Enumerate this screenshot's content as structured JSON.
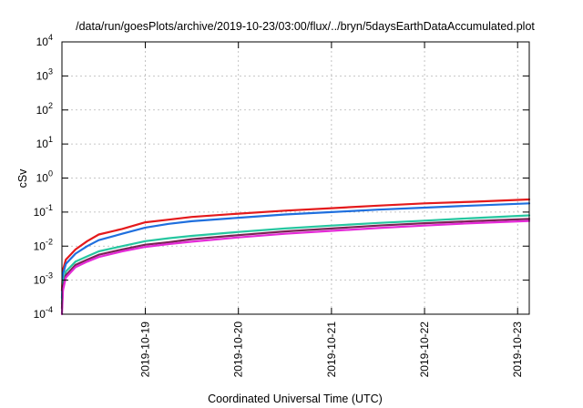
{
  "chart_data": {
    "type": "line",
    "title": "/data/run/goesPlots/archive/2019-10-23/03:00/flux/../bryn/5daysEarthDataAccumulated.plot",
    "xlabel": "Coordinated Universal Time (UTC)",
    "ylabel": "cSv",
    "yscale": "log",
    "xlim": [
      "2019-10-18T02:30",
      "2019-10-23T03:00"
    ],
    "ylim": [
      0.0001,
      10000
    ],
    "grid": true,
    "x_ticks": [
      "2019-10-19",
      "2019-10-20",
      "2019-10-21",
      "2019-10-22",
      "2019-10-23"
    ],
    "y_ticks": [
      {
        "base": "10",
        "exp": "-4",
        "value": 0.0001
      },
      {
        "base": "10",
        "exp": "-3",
        "value": 0.001
      },
      {
        "base": "10",
        "exp": "-2",
        "value": 0.01
      },
      {
        "base": "10",
        "exp": "-1",
        "value": 0.1
      },
      {
        "base": "10",
        "exp": "0",
        "value": 1
      },
      {
        "base": "10",
        "exp": "1",
        "value": 10
      },
      {
        "base": "10",
        "exp": "2",
        "value": 100
      },
      {
        "base": "10",
        "exp": "3",
        "value": 1000
      },
      {
        "base": "10",
        "exp": "4",
        "value": 10000
      }
    ],
    "series": [
      {
        "color": "#e41a1c",
        "points": [
          [
            "2019-10-18T02:30",
            0.0005
          ],
          [
            "2019-10-18T02:45",
            0.002
          ],
          [
            "2019-10-18T03:30",
            0.004
          ],
          [
            "2019-10-18T06:00",
            0.008
          ],
          [
            "2019-10-18T09:00",
            0.014
          ],
          [
            "2019-10-18T12:00",
            0.022
          ],
          [
            "2019-10-18T18:00",
            0.032
          ],
          [
            "2019-10-19T00:00",
            0.05
          ],
          [
            "2019-10-19T06:00",
            0.06
          ],
          [
            "2019-10-19T12:00",
            0.072
          ],
          [
            "2019-10-20T00:00",
            0.09
          ],
          [
            "2019-10-20T12:00",
            0.11
          ],
          [
            "2019-10-21T00:00",
            0.13
          ],
          [
            "2019-10-21T12:00",
            0.155
          ],
          [
            "2019-10-22T00:00",
            0.18
          ],
          [
            "2019-10-22T12:00",
            0.2
          ],
          [
            "2019-10-23T03:00",
            0.235
          ]
        ]
      },
      {
        "color": "#1f6fde",
        "points": [
          [
            "2019-10-18T02:30",
            0.0003
          ],
          [
            "2019-10-18T02:45",
            0.0015
          ],
          [
            "2019-10-18T03:30",
            0.003
          ],
          [
            "2019-10-18T06:00",
            0.006
          ],
          [
            "2019-10-18T09:00",
            0.01
          ],
          [
            "2019-10-18T12:00",
            0.015
          ],
          [
            "2019-10-18T18:00",
            0.023
          ],
          [
            "2019-10-19T00:00",
            0.035
          ],
          [
            "2019-10-19T06:00",
            0.045
          ],
          [
            "2019-10-19T12:00",
            0.054
          ],
          [
            "2019-10-20T00:00",
            0.068
          ],
          [
            "2019-10-20T12:00",
            0.085
          ],
          [
            "2019-10-21T00:00",
            0.1
          ],
          [
            "2019-10-21T12:00",
            0.118
          ],
          [
            "2019-10-22T00:00",
            0.135
          ],
          [
            "2019-10-22T12:00",
            0.155
          ],
          [
            "2019-10-23T03:00",
            0.18
          ]
        ]
      },
      {
        "color": "#26c6a0",
        "points": [
          [
            "2019-10-18T02:30",
            0.0002
          ],
          [
            "2019-10-18T02:45",
            0.0008
          ],
          [
            "2019-10-18T03:30",
            0.0018
          ],
          [
            "2019-10-18T06:00",
            0.0035
          ],
          [
            "2019-10-18T09:00",
            0.005
          ],
          [
            "2019-10-18T12:00",
            0.007
          ],
          [
            "2019-10-18T18:00",
            0.01
          ],
          [
            "2019-10-19T00:00",
            0.014
          ],
          [
            "2019-10-19T06:00",
            0.017
          ],
          [
            "2019-10-19T12:00",
            0.02
          ],
          [
            "2019-10-20T00:00",
            0.026
          ],
          [
            "2019-10-20T12:00",
            0.033
          ],
          [
            "2019-10-21T00:00",
            0.04
          ],
          [
            "2019-10-21T12:00",
            0.048
          ],
          [
            "2019-10-22T00:00",
            0.056
          ],
          [
            "2019-10-22T12:00",
            0.066
          ],
          [
            "2019-10-23T03:00",
            0.08
          ]
        ]
      },
      {
        "color": "#7a2455",
        "points": [
          [
            "2019-10-18T02:30",
            0.00015
          ],
          [
            "2019-10-18T02:45",
            0.0006
          ],
          [
            "2019-10-18T03:30",
            0.0014
          ],
          [
            "2019-10-18T06:00",
            0.0028
          ],
          [
            "2019-10-18T09:00",
            0.004
          ],
          [
            "2019-10-18T12:00",
            0.0056
          ],
          [
            "2019-10-18T18:00",
            0.008
          ],
          [
            "2019-10-19T00:00",
            0.011
          ],
          [
            "2019-10-19T06:00",
            0.013
          ],
          [
            "2019-10-19T12:00",
            0.016
          ],
          [
            "2019-10-20T00:00",
            0.021
          ],
          [
            "2019-10-20T12:00",
            0.027
          ],
          [
            "2019-10-21T00:00",
            0.033
          ],
          [
            "2019-10-21T12:00",
            0.04
          ],
          [
            "2019-10-22T00:00",
            0.047
          ],
          [
            "2019-10-22T12:00",
            0.054
          ],
          [
            "2019-10-23T03:00",
            0.063
          ]
        ]
      },
      {
        "color": "#e52ad8",
        "points": [
          [
            "2019-10-18T02:30",
            0.0001
          ],
          [
            "2019-10-18T02:45",
            0.0005
          ],
          [
            "2019-10-18T03:30",
            0.0012
          ],
          [
            "2019-10-18T06:00",
            0.0024
          ],
          [
            "2019-10-18T09:00",
            0.0035
          ],
          [
            "2019-10-18T12:00",
            0.0048
          ],
          [
            "2019-10-18T18:00",
            0.007
          ],
          [
            "2019-10-19T00:00",
            0.0095
          ],
          [
            "2019-10-19T06:00",
            0.0115
          ],
          [
            "2019-10-19T12:00",
            0.0135
          ],
          [
            "2019-10-20T00:00",
            0.018
          ],
          [
            "2019-10-20T12:00",
            0.023
          ],
          [
            "2019-10-21T00:00",
            0.028
          ],
          [
            "2019-10-21T12:00",
            0.034
          ],
          [
            "2019-10-22T00:00",
            0.04
          ],
          [
            "2019-10-22T12:00",
            0.047
          ],
          [
            "2019-10-23T03:00",
            0.055
          ]
        ]
      }
    ]
  }
}
